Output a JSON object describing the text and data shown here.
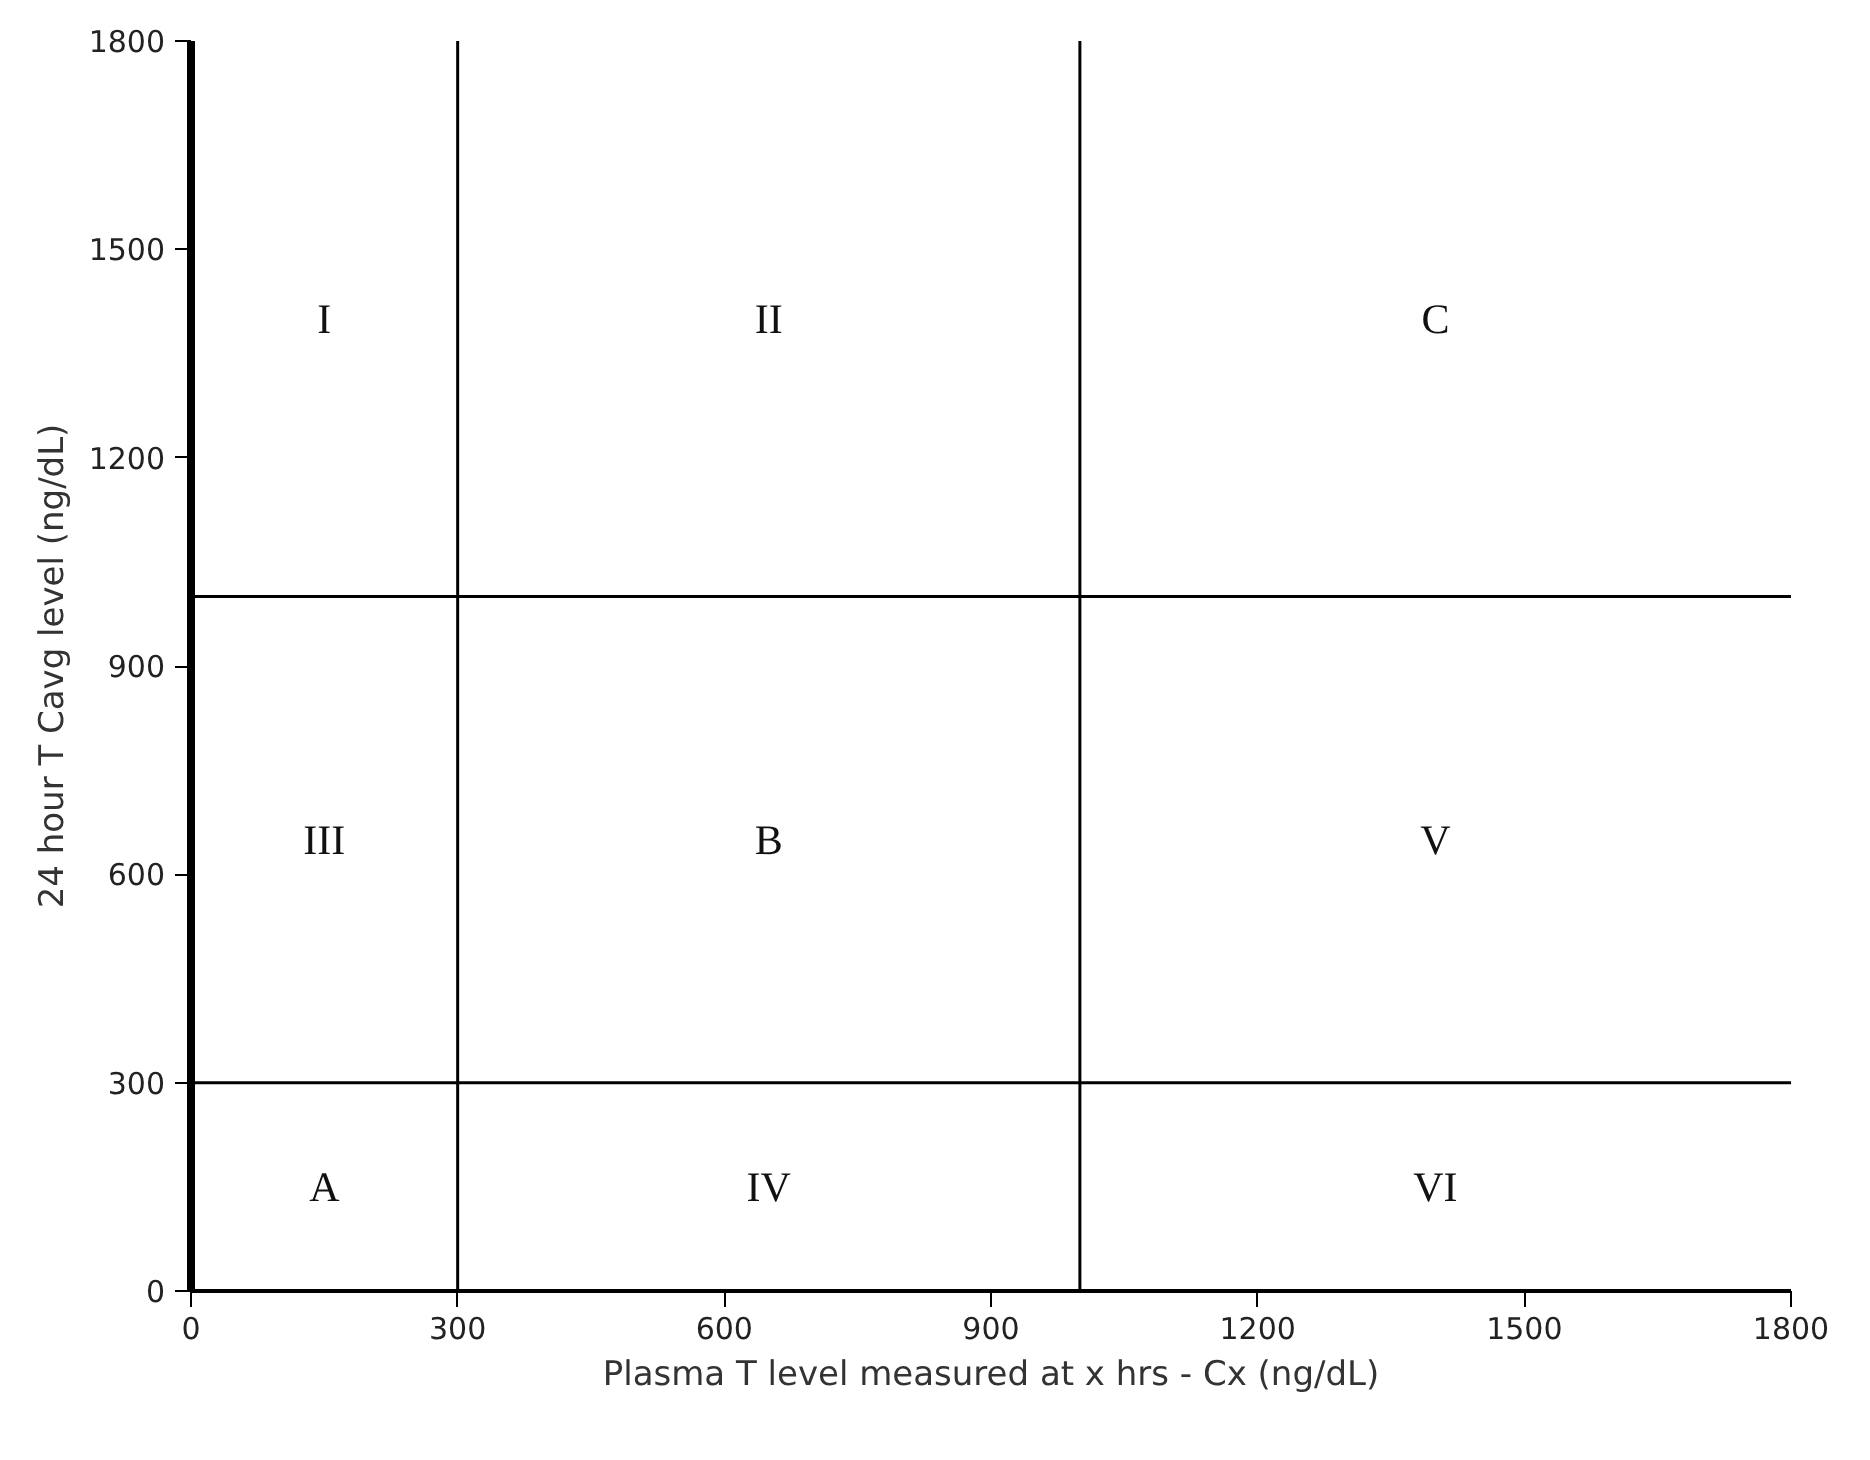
{
  "chart_data": {
    "type": "line",
    "xlabel": "Plasma T level measured at x hrs - Cx (ng/dL)",
    "ylabel": "24 hour T Cavg level (ng/dL)",
    "xlim": [
      0,
      1800
    ],
    "ylim": [
      0,
      1800
    ],
    "xticks": [
      0,
      300,
      600,
      900,
      1200,
      1500,
      1800
    ],
    "yticks": [
      0,
      300,
      600,
      900,
      1200,
      1500,
      1800
    ],
    "series": [
      {
        "color": "#000000",
        "x": [
          300,
          300
        ],
        "values": [
          0,
          1800
        ]
      },
      {
        "color": "#000000",
        "x": [
          1000,
          1000
        ],
        "values": [
          0,
          1800
        ]
      },
      {
        "color": "#000000",
        "x": [
          0,
          1800
        ],
        "values": [
          300,
          300
        ]
      },
      {
        "color": "#000000",
        "x": [
          0,
          1800
        ],
        "values": [
          1000,
          1000
        ]
      }
    ],
    "annotations": [
      "I",
      "II",
      "C",
      "III",
      "B",
      "V",
      "A",
      "IV",
      "VI"
    ]
  }
}
